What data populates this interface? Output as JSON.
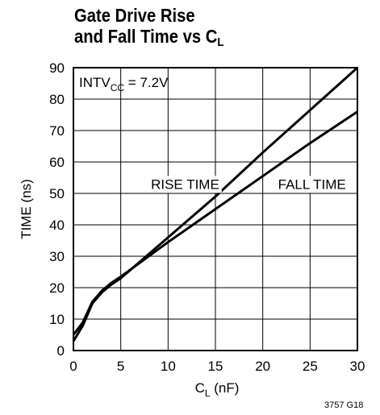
{
  "chart_data": {
    "type": "line",
    "title_line1": "Gate Drive Rise",
    "title_line2_main": "and Fall Time vs C",
    "title_line2_sub": "L",
    "xlabel_main": "C",
    "xlabel_sub": "L",
    "xlabel_unit": " (nF)",
    "ylabel": "TIME (ns)",
    "xlim": [
      0,
      30
    ],
    "ylim": [
      0,
      90
    ],
    "xticks": [
      0,
      5,
      10,
      15,
      20,
      25,
      30
    ],
    "yticks": [
      0,
      10,
      20,
      30,
      40,
      50,
      60,
      70,
      80,
      90
    ],
    "grid": true,
    "annotation": {
      "main": "INTV",
      "sub": "CC",
      "tail": " = 7.2V"
    },
    "series": [
      {
        "name": "RISE TIME",
        "x": [
          0,
          1,
          2,
          3,
          4,
          5,
          7.5,
          10,
          15,
          20,
          25,
          30
        ],
        "y": [
          3,
          8,
          15,
          18.5,
          21,
          23,
          29.5,
          36,
          49,
          63,
          76.5,
          90
        ]
      },
      {
        "name": "FALL TIME",
        "x": [
          0,
          1,
          2,
          3,
          4,
          5,
          7.5,
          10,
          15,
          20,
          25,
          30
        ],
        "y": [
          5,
          9,
          15.5,
          19,
          21.5,
          23.5,
          29,
          34.5,
          45,
          55.5,
          66,
          76
        ]
      }
    ],
    "series_labels": [
      {
        "text": "RISE TIME",
        "x": 11.8,
        "y": 53
      },
      {
        "text": "FALL TIME",
        "x": 25.2,
        "y": 53
      }
    ]
  },
  "figure_code": "3757 G18"
}
